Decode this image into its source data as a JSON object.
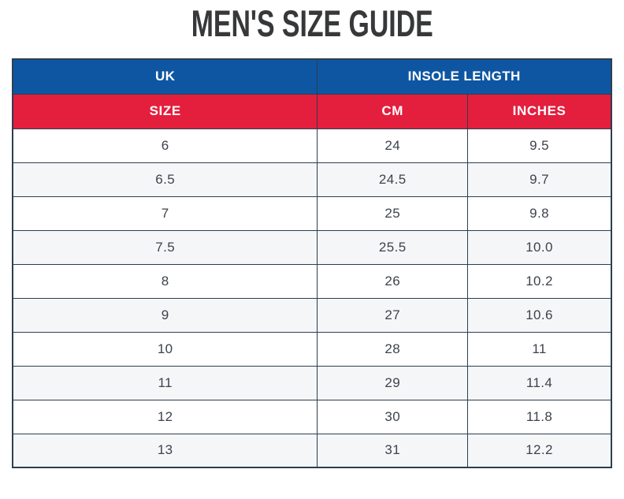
{
  "page": {
    "title": "MEN'S SIZE GUIDE"
  },
  "table": {
    "header_top": {
      "uk": "UK",
      "insole_length": "INSOLE LENGTH"
    },
    "header_sub": {
      "size": "SIZE",
      "cm": "CM",
      "inches": "INCHES"
    },
    "rows": [
      {
        "size": "6",
        "cm": "24",
        "inches": "9.5"
      },
      {
        "size": "6.5",
        "cm": "24.5",
        "inches": "9.7"
      },
      {
        "size": "7",
        "cm": "25",
        "inches": "9.8"
      },
      {
        "size": "7.5",
        "cm": "25.5",
        "inches": "10.0"
      },
      {
        "size": "8",
        "cm": "26",
        "inches": "10.2"
      },
      {
        "size": "9",
        "cm": "27",
        "inches": "10.6"
      },
      {
        "size": "10",
        "cm": "28",
        "inches": "11"
      },
      {
        "size": "11",
        "cm": "29",
        "inches": "11.4"
      },
      {
        "size": "12",
        "cm": "30",
        "inches": "11.8"
      },
      {
        "size": "13",
        "cm": "31",
        "inches": "12.2"
      }
    ]
  },
  "colors": {
    "header_blue": "#0f56a2",
    "header_red": "#e41e3d",
    "table_border": "#2c3e50",
    "row_alternate": "#f5f6f8",
    "cell_text": "#3d434c",
    "title_text": "#37383a"
  }
}
